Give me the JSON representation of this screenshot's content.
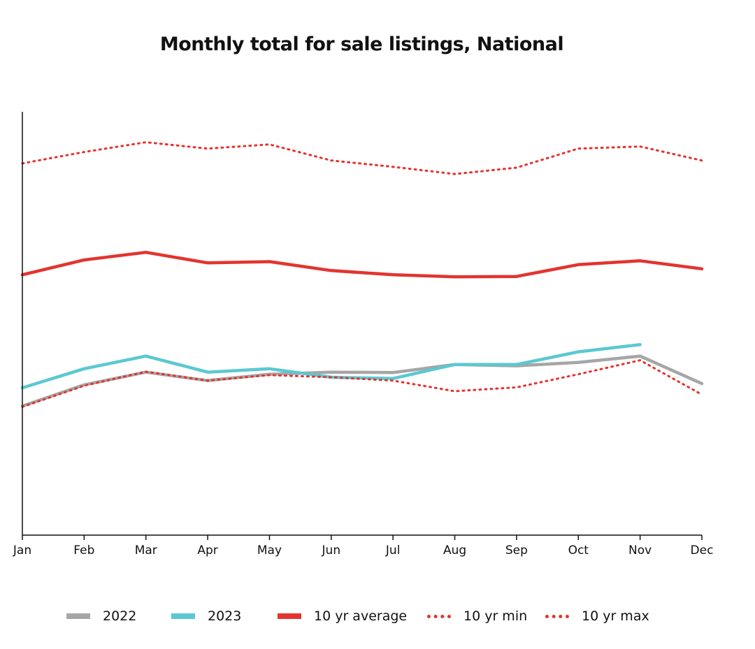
{
  "chart_data": {
    "type": "line",
    "title": "Monthly total for sale listings, National",
    "xlabel": "",
    "ylabel": "",
    "categories": [
      "Jan",
      "Feb",
      "Mar",
      "Apr",
      "May",
      "Jun",
      "Jul",
      "Aug",
      "Sep",
      "Oct",
      "Nov",
      "Dec"
    ],
    "ylim": [
      0,
      100
    ],
    "y_axis_labels_visible": false,
    "grid": false,
    "legend_position": "bottom",
    "series": [
      {
        "name": "2022",
        "color": "#a6a6a6",
        "style": "solid",
        "values": [
          30.5,
          35.5,
          38.5,
          36.5,
          38.0,
          38.5,
          38.4,
          40.3,
          40.0,
          40.8,
          42.3,
          35.8
        ]
      },
      {
        "name": "2023",
        "color": "#5bc8d1",
        "style": "solid",
        "values": [
          34.8,
          39.3,
          42.3,
          38.5,
          39.3,
          37.3,
          37.0,
          40.3,
          40.3,
          43.3,
          45.0,
          null
        ]
      },
      {
        "name": "10 yr average",
        "color": "#e3342f",
        "style": "solid-thick",
        "values": [
          61.5,
          65.0,
          66.8,
          64.3,
          64.6,
          62.5,
          61.5,
          61.0,
          61.1,
          63.9,
          64.8,
          62.9
        ]
      },
      {
        "name": "10 yr min",
        "color": "#e3342f",
        "style": "dotted",
        "values": [
          30.3,
          35.3,
          38.6,
          36.5,
          37.8,
          37.3,
          36.5,
          34.0,
          34.9,
          38.0,
          41.3,
          33.2
        ]
      },
      {
        "name": "10 yr max",
        "color": "#e3342f",
        "style": "dotted",
        "values": [
          87.8,
          90.5,
          92.8,
          91.3,
          92.3,
          88.5,
          87.0,
          85.3,
          86.8,
          91.3,
          91.8,
          88.5
        ]
      }
    ]
  }
}
